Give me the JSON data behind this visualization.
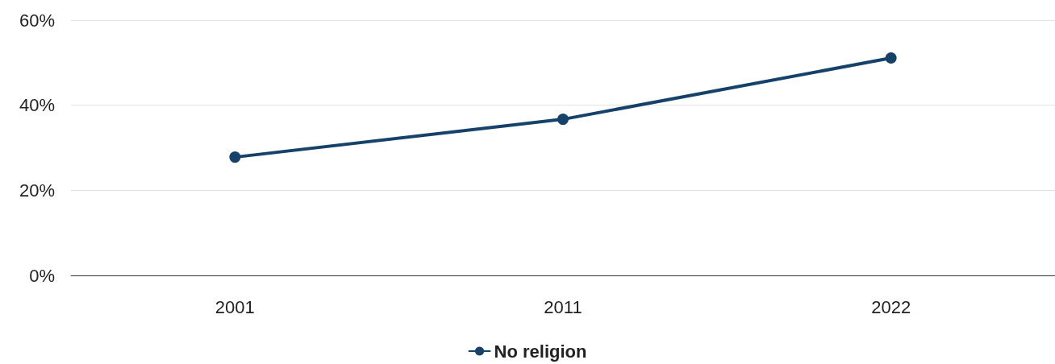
{
  "chart_data": {
    "type": "line",
    "categories": [
      "2001",
      "2011",
      "2022"
    ],
    "series": [
      {
        "name": "No religion",
        "color": "#15426b",
        "values": [
          27.8,
          36.7,
          51.1
        ]
      }
    ],
    "ylim": [
      0,
      60
    ],
    "yticks": [
      {
        "value": 0,
        "label": "0%"
      },
      {
        "value": 20,
        "label": "20%"
      },
      {
        "value": 40,
        "label": "40%"
      },
      {
        "value": 60,
        "label": "60%"
      }
    ],
    "grid": "y",
    "legend": "bottom",
    "marker": "circle",
    "line_style": "solid"
  }
}
